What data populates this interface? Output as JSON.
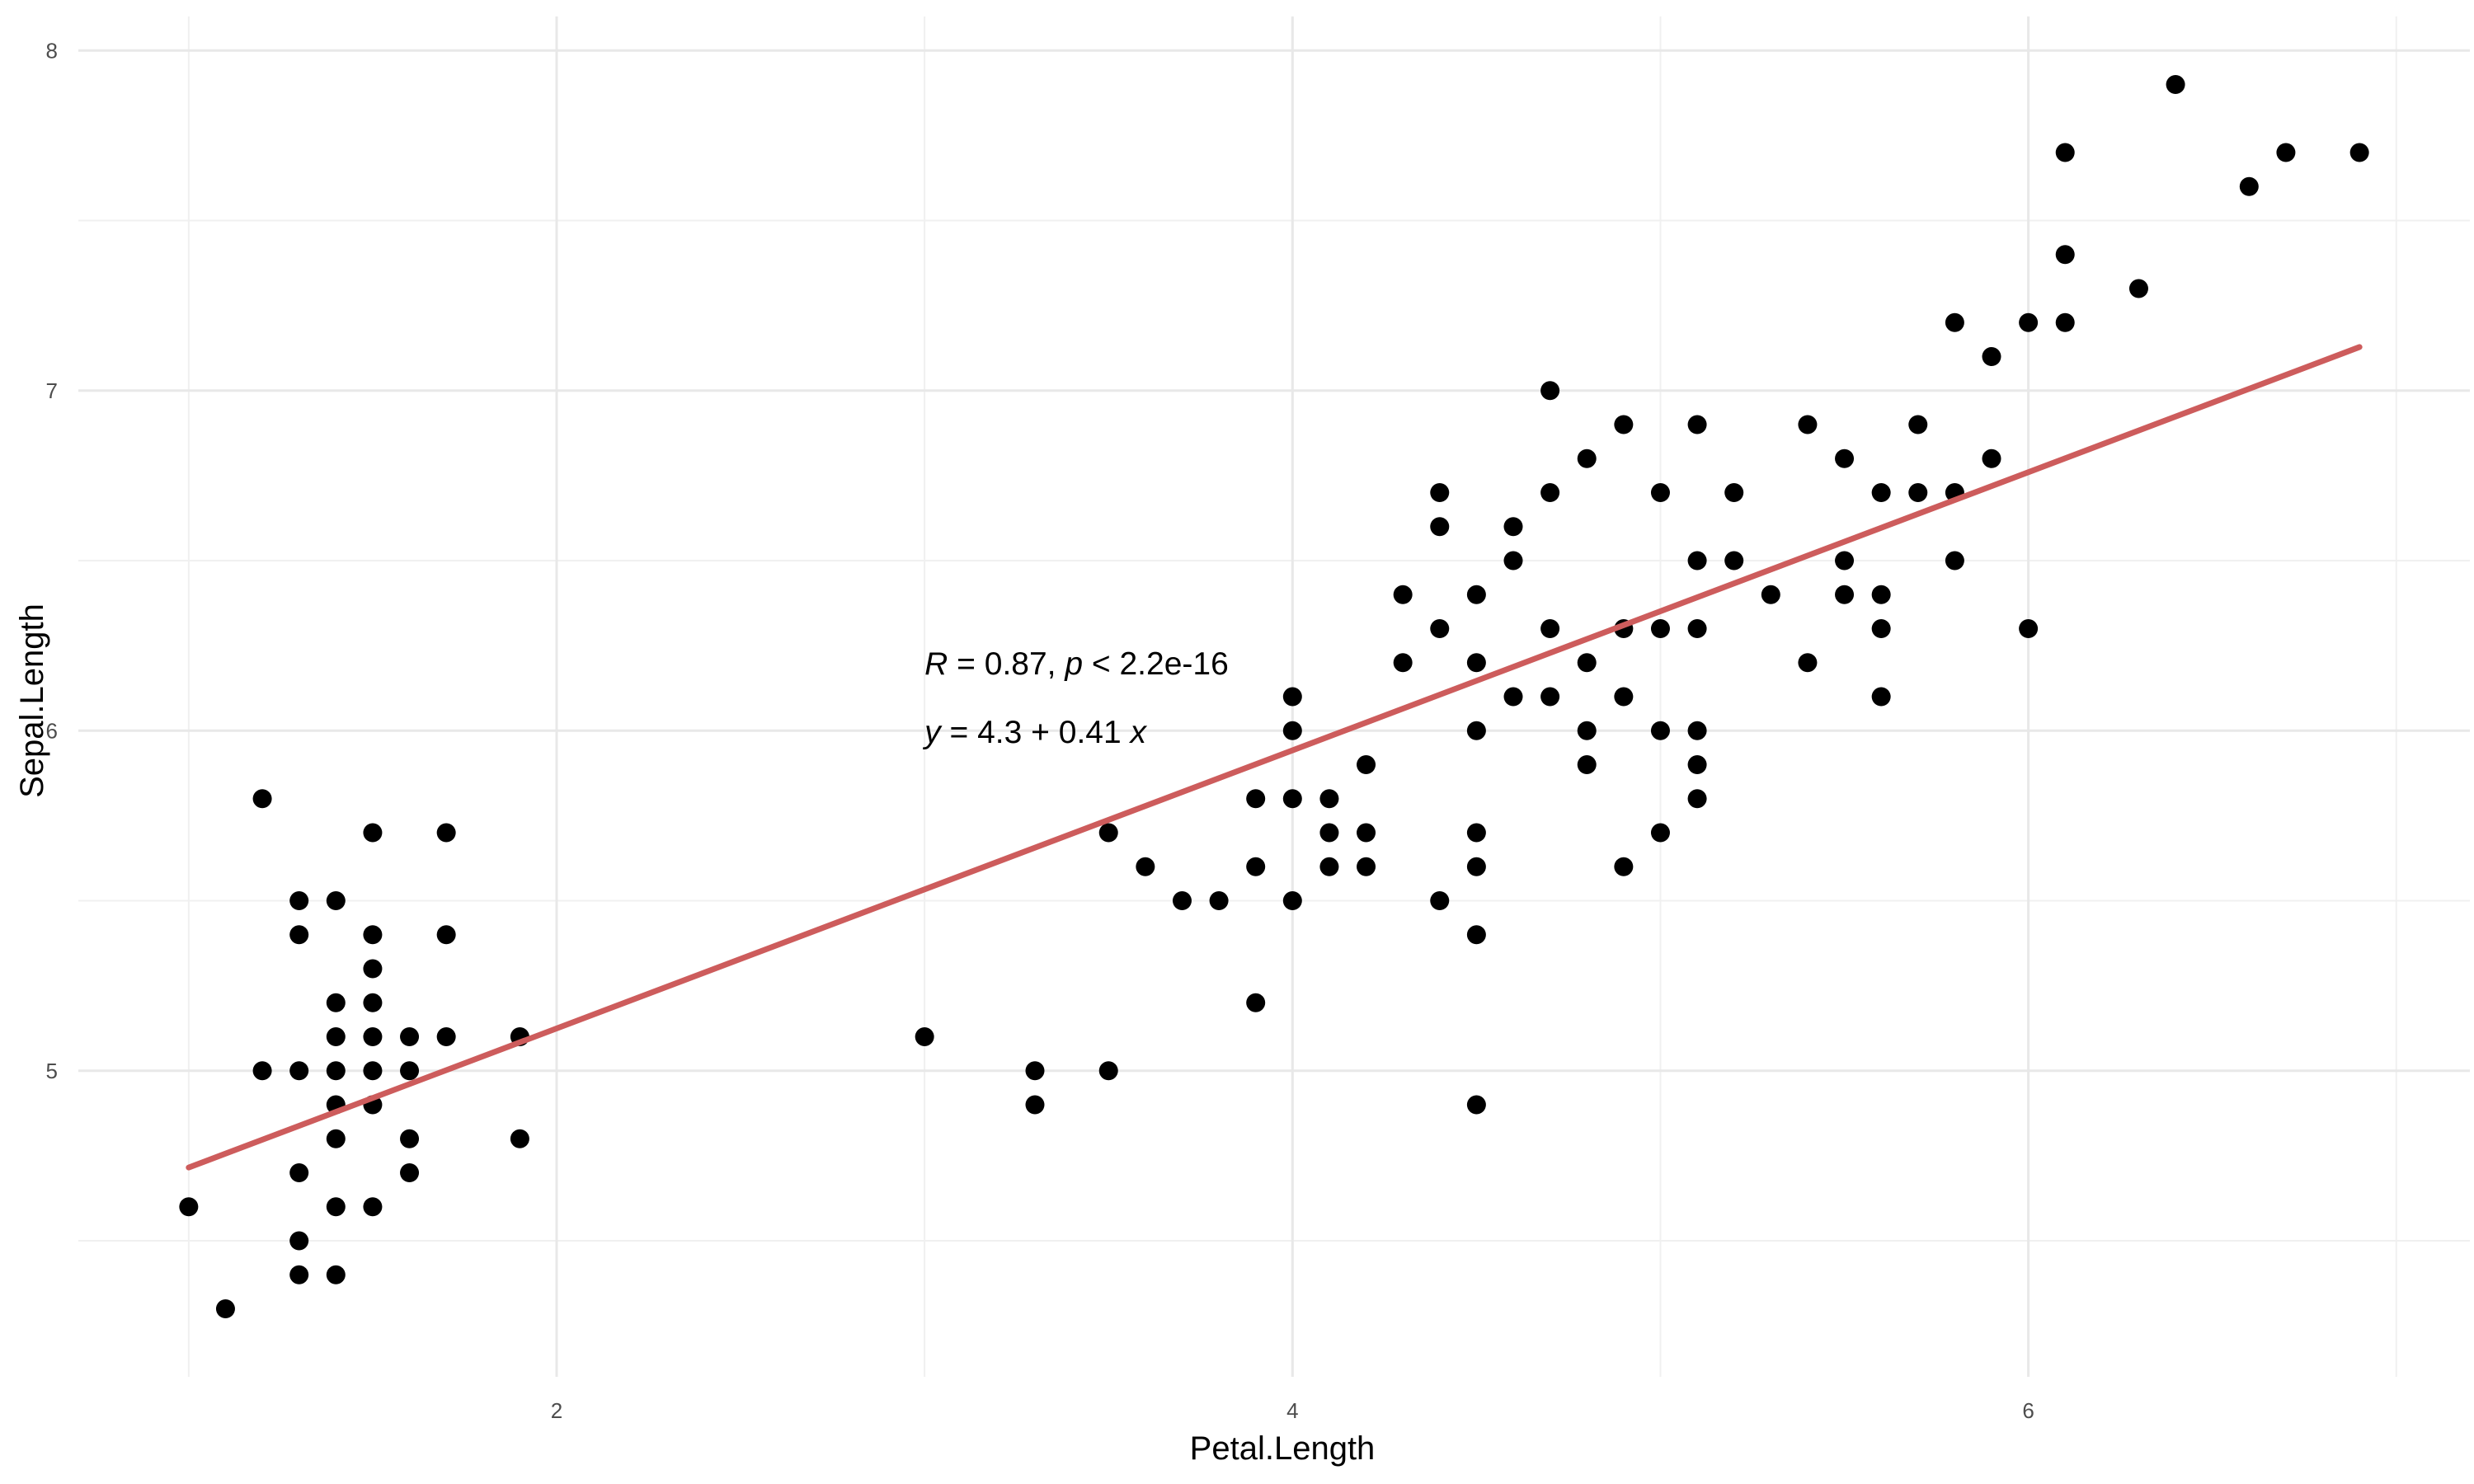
{
  "chart_data": {
    "type": "scatter",
    "xlabel": "Petal.Length",
    "ylabel": "Sepal.Length",
    "xlim": [
      0.7,
      7.2
    ],
    "ylim": [
      4.1,
      8.1
    ],
    "x_ticks_major": [
      2,
      4,
      6
    ],
    "x_ticks_minor": [
      1,
      3,
      5,
      7
    ],
    "y_ticks_major": [
      5,
      6,
      7,
      8
    ],
    "y_ticks_minor": [
      4.5,
      5.5,
      6.5,
      7.5
    ],
    "grid": true,
    "point_color": "#000000",
    "fit_line": {
      "color": "#cd5c5c",
      "intercept": 4.3066,
      "slope": 0.4089,
      "x_range": [
        1.0,
        6.9
      ]
    },
    "annotation": {
      "line1": {
        "r_var": "R",
        "r_rest": " = 0.87, ",
        "p_var": "p",
        "p_rest": " < 2.2e-16"
      },
      "line2": {
        "y_var": "y",
        "eq_rest": " = 4.3 + 0.41 ",
        "x_var": "x"
      },
      "anchor": [
        3.0,
        6.2
      ]
    },
    "points": [
      [
        1.0,
        4.6
      ],
      [
        1.1,
        4.3
      ],
      [
        1.2,
        5.8
      ],
      [
        1.2,
        5.0
      ],
      [
        1.3,
        5.5
      ],
      [
        1.3,
        5.4
      ],
      [
        1.3,
        5.0
      ],
      [
        1.3,
        4.7
      ],
      [
        1.3,
        4.5
      ],
      [
        1.3,
        4.4
      ],
      [
        1.4,
        5.5
      ],
      [
        1.4,
        5.2
      ],
      [
        1.4,
        5.1
      ],
      [
        1.4,
        5.0
      ],
      [
        1.4,
        4.9
      ],
      [
        1.4,
        4.8
      ],
      [
        1.4,
        4.6
      ],
      [
        1.4,
        4.4
      ],
      [
        1.5,
        5.7
      ],
      [
        1.5,
        5.4
      ],
      [
        1.5,
        5.3
      ],
      [
        1.5,
        5.2
      ],
      [
        1.5,
        5.1
      ],
      [
        1.5,
        5.0
      ],
      [
        1.5,
        4.9
      ],
      [
        1.5,
        4.6
      ],
      [
        1.6,
        5.1
      ],
      [
        1.6,
        5.0
      ],
      [
        1.6,
        4.8
      ],
      [
        1.6,
        4.7
      ],
      [
        1.7,
        5.7
      ],
      [
        1.7,
        5.4
      ],
      [
        1.7,
        5.1
      ],
      [
        1.9,
        5.1
      ],
      [
        1.9,
        4.8
      ],
      [
        3.0,
        5.1
      ],
      [
        3.3,
        5.0
      ],
      [
        3.3,
        4.9
      ],
      [
        3.5,
        5.7
      ],
      [
        3.5,
        5.0
      ],
      [
        3.6,
        5.6
      ],
      [
        3.7,
        5.5
      ],
      [
        3.8,
        5.5
      ],
      [
        3.9,
        5.8
      ],
      [
        3.9,
        5.6
      ],
      [
        3.9,
        5.2
      ],
      [
        4.0,
        6.1
      ],
      [
        4.0,
        6.0
      ],
      [
        4.0,
        5.8
      ],
      [
        4.0,
        5.5
      ],
      [
        4.1,
        5.8
      ],
      [
        4.1,
        5.7
      ],
      [
        4.1,
        5.6
      ],
      [
        4.2,
        5.9
      ],
      [
        4.2,
        5.7
      ],
      [
        4.2,
        5.6
      ],
      [
        4.3,
        6.4
      ],
      [
        4.3,
        6.2
      ],
      [
        4.4,
        6.7
      ],
      [
        4.4,
        6.6
      ],
      [
        4.4,
        6.3
      ],
      [
        4.4,
        5.5
      ],
      [
        4.5,
        6.4
      ],
      [
        4.5,
        6.2
      ],
      [
        4.5,
        6.0
      ],
      [
        4.5,
        5.7
      ],
      [
        4.5,
        5.6
      ],
      [
        4.5,
        5.4
      ],
      [
        4.5,
        4.9
      ],
      [
        4.6,
        6.6
      ],
      [
        4.6,
        6.5
      ],
      [
        4.6,
        6.1
      ],
      [
        4.7,
        7.0
      ],
      [
        4.7,
        6.7
      ],
      [
        4.7,
        6.3
      ],
      [
        4.7,
        6.1
      ],
      [
        4.8,
        6.8
      ],
      [
        4.8,
        6.2
      ],
      [
        4.8,
        6.0
      ],
      [
        4.8,
        5.9
      ],
      [
        4.9,
        6.9
      ],
      [
        4.9,
        6.3
      ],
      [
        4.9,
        6.1
      ],
      [
        4.9,
        5.6
      ],
      [
        5.0,
        6.7
      ],
      [
        5.0,
        6.3
      ],
      [
        5.0,
        6.0
      ],
      [
        5.0,
        5.7
      ],
      [
        5.1,
        6.9
      ],
      [
        5.1,
        6.5
      ],
      [
        5.1,
        6.3
      ],
      [
        5.1,
        6.0
      ],
      [
        5.1,
        5.9
      ],
      [
        5.1,
        5.8
      ],
      [
        5.2,
        6.7
      ],
      [
        5.2,
        6.5
      ],
      [
        5.3,
        6.4
      ],
      [
        5.4,
        6.9
      ],
      [
        5.4,
        6.2
      ],
      [
        5.5,
        6.8
      ],
      [
        5.5,
        6.5
      ],
      [
        5.5,
        6.4
      ],
      [
        5.6,
        6.7
      ],
      [
        5.6,
        6.4
      ],
      [
        5.6,
        6.3
      ],
      [
        5.6,
        6.1
      ],
      [
        5.7,
        6.9
      ],
      [
        5.7,
        6.7
      ],
      [
        5.8,
        7.2
      ],
      [
        5.8,
        6.7
      ],
      [
        5.8,
        6.5
      ],
      [
        5.9,
        7.1
      ],
      [
        5.9,
        6.8
      ],
      [
        6.0,
        7.2
      ],
      [
        6.0,
        6.3
      ],
      [
        6.1,
        7.7
      ],
      [
        6.1,
        7.4
      ],
      [
        6.1,
        7.2
      ],
      [
        6.3,
        7.3
      ],
      [
        6.4,
        7.9
      ],
      [
        6.6,
        7.6
      ],
      [
        6.7,
        7.7
      ],
      [
        6.9,
        7.7
      ]
    ]
  }
}
